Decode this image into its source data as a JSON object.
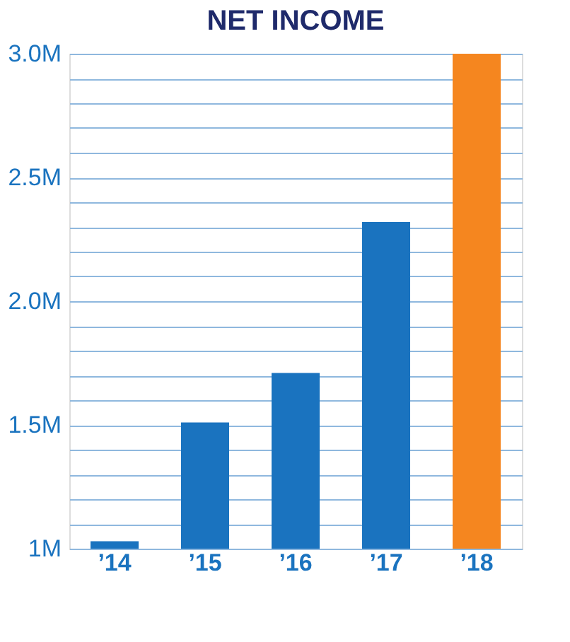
{
  "chart_data": {
    "type": "bar",
    "title": "NET INCOME",
    "categories": [
      "’14",
      "’15",
      "’16",
      "’17",
      "’18"
    ],
    "values": [
      1.03,
      1.51,
      1.71,
      2.32,
      3.0
    ],
    "colors": [
      "#1a73bf",
      "#1a73bf",
      "#1a73bf",
      "#1a73bf",
      "#f5861f"
    ],
    "ylim": [
      1,
      3.0
    ],
    "yticks": [
      {
        "value": 1,
        "label": "1M"
      },
      {
        "value": 1.1,
        "label": null
      },
      {
        "value": 1.2,
        "label": null
      },
      {
        "value": 1.3,
        "label": null
      },
      {
        "value": 1.4,
        "label": null
      },
      {
        "value": 1.5,
        "label": "1.5M"
      },
      {
        "value": 1.6,
        "label": null
      },
      {
        "value": 1.7,
        "label": null
      },
      {
        "value": 1.8,
        "label": null
      },
      {
        "value": 1.9,
        "label": null
      },
      {
        "value": 2.0,
        "label": "2.0M"
      },
      {
        "value": 2.1,
        "label": null
      },
      {
        "value": 2.2,
        "label": null
      },
      {
        "value": 2.3,
        "label": null
      },
      {
        "value": 2.4,
        "label": null
      },
      {
        "value": 2.5,
        "label": "2.5M"
      },
      {
        "value": 2.6,
        "label": null
      },
      {
        "value": 2.7,
        "label": null
      },
      {
        "value": 2.8,
        "label": null
      },
      {
        "value": 2.9,
        "label": null
      },
      {
        "value": 3.0,
        "label": "3.0M"
      }
    ],
    "grid": "y"
  }
}
